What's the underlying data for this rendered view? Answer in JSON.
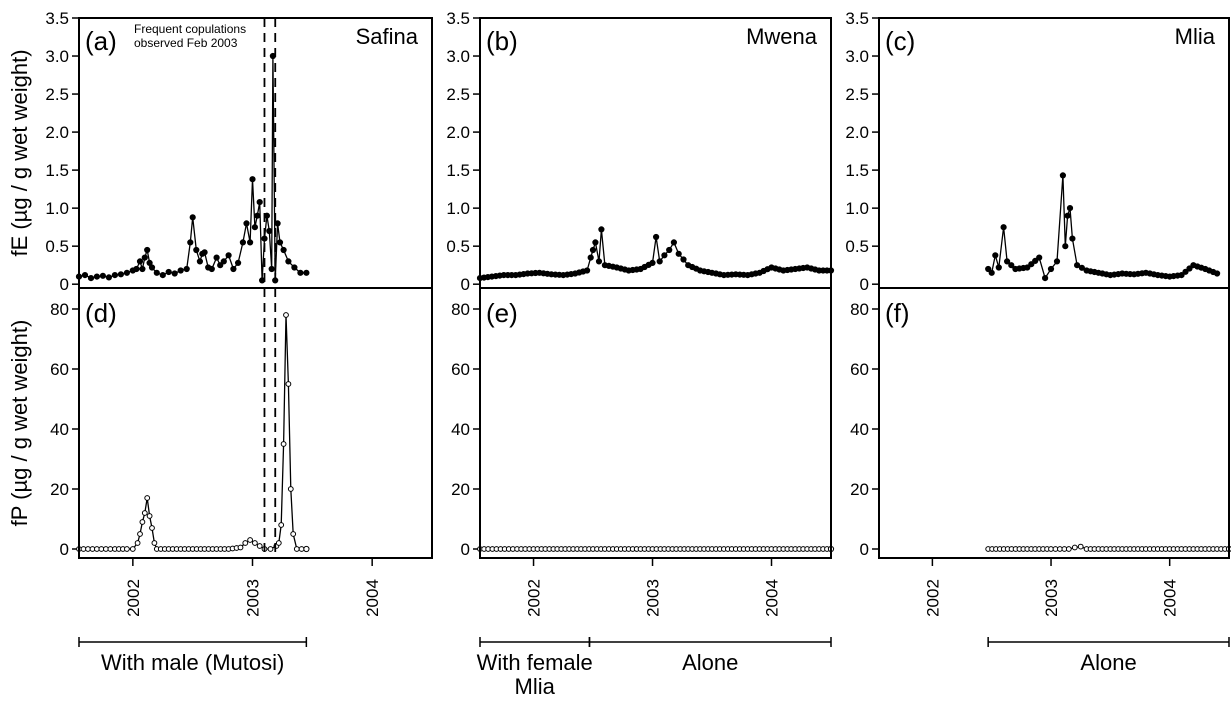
{
  "chart_data": {
    "type": "line",
    "x_axis": {
      "ticks": [
        "2002",
        "2003",
        "2004"
      ],
      "tick_values": [
        2002.0,
        2003.0,
        2004.0
      ],
      "xlim": [
        2001.55,
        2004.5
      ]
    },
    "rows": [
      {
        "id": "fE",
        "ylabel": "fE (µg / g wet weight)",
        "ylim": [
          -0.05,
          3.5
        ],
        "yticks": [
          0,
          0.5,
          1.0,
          1.5,
          2.0,
          2.5,
          3.0,
          3.5
        ],
        "ytick_labels": [
          "0",
          "0.5",
          "1.0",
          "1.5",
          "2.0",
          "2.5",
          "3.0",
          "3.5"
        ],
        "marker": "filled"
      },
      {
        "id": "fP",
        "ylabel": "fP (µg / g wet weight)",
        "ylim": [
          -3,
          87
        ],
        "yticks": [
          0,
          20,
          40,
          60,
          80
        ],
        "ytick_labels": [
          "0",
          "20",
          "40",
          "60",
          "80"
        ],
        "marker": "open"
      }
    ],
    "columns": [
      {
        "name": "Safina",
        "letters": [
          "(a)",
          "(d)"
        ],
        "vlines": [
          2003.1,
          2003.19
        ],
        "annotation": [
          "Frequent copulations",
          "observed Feb 2003"
        ],
        "periods": [
          {
            "range": [
              2001.55,
              2003.45
            ],
            "label": [
              "With male (Mutosi)"
            ]
          }
        ],
        "fE": [
          [
            2001.55,
            0.1
          ],
          [
            2001.6,
            0.12
          ],
          [
            2001.65,
            0.08
          ],
          [
            2001.7,
            0.1
          ],
          [
            2001.75,
            0.11
          ],
          [
            2001.8,
            0.09
          ],
          [
            2001.85,
            0.12
          ],
          [
            2001.9,
            0.13
          ],
          [
            2001.95,
            0.15
          ],
          [
            2002.0,
            0.18
          ],
          [
            2002.03,
            0.2
          ],
          [
            2002.06,
            0.3
          ],
          [
            2002.08,
            0.2
          ],
          [
            2002.1,
            0.35
          ],
          [
            2002.12,
            0.45
          ],
          [
            2002.14,
            0.28
          ],
          [
            2002.16,
            0.22
          ],
          [
            2002.2,
            0.15
          ],
          [
            2002.25,
            0.12
          ],
          [
            2002.3,
            0.16
          ],
          [
            2002.35,
            0.14
          ],
          [
            2002.4,
            0.18
          ],
          [
            2002.45,
            0.2
          ],
          [
            2002.48,
            0.55
          ],
          [
            2002.5,
            0.88
          ],
          [
            2002.53,
            0.45
          ],
          [
            2002.56,
            0.3
          ],
          [
            2002.58,
            0.4
          ],
          [
            2002.6,
            0.42
          ],
          [
            2002.63,
            0.22
          ],
          [
            2002.66,
            0.2
          ],
          [
            2002.7,
            0.35
          ],
          [
            2002.73,
            0.25
          ],
          [
            2002.76,
            0.3
          ],
          [
            2002.8,
            0.38
          ],
          [
            2002.84,
            0.2
          ],
          [
            2002.88,
            0.28
          ],
          [
            2002.92,
            0.55
          ],
          [
            2002.95,
            0.8
          ],
          [
            2002.98,
            0.55
          ],
          [
            2003.0,
            1.38
          ],
          [
            2003.02,
            0.75
          ],
          [
            2003.04,
            0.9
          ],
          [
            2003.06,
            1.08
          ],
          [
            2003.08,
            0.05
          ],
          [
            2003.1,
            0.6
          ],
          [
            2003.12,
            0.9
          ],
          [
            2003.14,
            0.7
          ],
          [
            2003.16,
            0.2
          ],
          [
            2003.17,
            3.0
          ],
          [
            2003.19,
            0.05
          ],
          [
            2003.21,
            0.8
          ],
          [
            2003.23,
            0.55
          ],
          [
            2003.26,
            0.45
          ],
          [
            2003.3,
            0.3
          ],
          [
            2003.35,
            0.22
          ],
          [
            2003.4,
            0.15
          ],
          [
            2003.45,
            0.15
          ]
        ],
        "fP": [
          [
            2001.55,
            0
          ],
          [
            2001.7,
            0
          ],
          [
            2001.85,
            0
          ],
          [
            2001.95,
            0
          ],
          [
            2002.0,
            0
          ],
          [
            2002.04,
            2
          ],
          [
            2002.06,
            5
          ],
          [
            2002.08,
            9
          ],
          [
            2002.1,
            12
          ],
          [
            2002.12,
            17
          ],
          [
            2002.14,
            11
          ],
          [
            2002.16,
            7
          ],
          [
            2002.18,
            2
          ],
          [
            2002.2,
            0
          ],
          [
            2002.4,
            0
          ],
          [
            2002.6,
            0
          ],
          [
            2002.8,
            0
          ],
          [
            2002.9,
            0.5
          ],
          [
            2002.94,
            2
          ],
          [
            2002.98,
            3
          ],
          [
            2003.02,
            2
          ],
          [
            2003.06,
            1
          ],
          [
            2003.1,
            0
          ],
          [
            2003.15,
            0
          ],
          [
            2003.2,
            1
          ],
          [
            2003.22,
            2
          ],
          [
            2003.24,
            8
          ],
          [
            2003.26,
            35
          ],
          [
            2003.28,
            78
          ],
          [
            2003.3,
            55
          ],
          [
            2003.32,
            20
          ],
          [
            2003.34,
            5
          ],
          [
            2003.37,
            0
          ],
          [
            2003.45,
            0
          ]
        ]
      },
      {
        "name": "Mwena",
        "letters": [
          "(b)",
          "(e)"
        ],
        "vlines": [],
        "annotation": [],
        "periods": [
          {
            "range": [
              2001.55,
              2002.47
            ],
            "label": [
              "With female",
              "Mlia"
            ]
          },
          {
            "range": [
              2002.47,
              2004.5
            ],
            "label": [
              "Alone"
            ]
          }
        ],
        "fE": [
          [
            2001.55,
            0.08
          ],
          [
            2001.65,
            0.1
          ],
          [
            2001.75,
            0.12
          ],
          [
            2001.85,
            0.12
          ],
          [
            2001.95,
            0.14
          ],
          [
            2002.05,
            0.15
          ],
          [
            2002.15,
            0.13
          ],
          [
            2002.25,
            0.12
          ],
          [
            2002.35,
            0.14
          ],
          [
            2002.45,
            0.18
          ],
          [
            2002.48,
            0.35
          ],
          [
            2002.5,
            0.45
          ],
          [
            2002.52,
            0.55
          ],
          [
            2002.55,
            0.3
          ],
          [
            2002.57,
            0.72
          ],
          [
            2002.6,
            0.25
          ],
          [
            2002.7,
            0.22
          ],
          [
            2002.8,
            0.18
          ],
          [
            2002.9,
            0.2
          ],
          [
            2003.0,
            0.28
          ],
          [
            2003.03,
            0.62
          ],
          [
            2003.06,
            0.3
          ],
          [
            2003.1,
            0.38
          ],
          [
            2003.14,
            0.45
          ],
          [
            2003.18,
            0.55
          ],
          [
            2003.22,
            0.4
          ],
          [
            2003.3,
            0.25
          ],
          [
            2003.4,
            0.18
          ],
          [
            2003.5,
            0.15
          ],
          [
            2003.6,
            0.12
          ],
          [
            2003.7,
            0.13
          ],
          [
            2003.8,
            0.12
          ],
          [
            2003.9,
            0.15
          ],
          [
            2004.0,
            0.22
          ],
          [
            2004.1,
            0.18
          ],
          [
            2004.2,
            0.2
          ],
          [
            2004.3,
            0.22
          ],
          [
            2004.4,
            0.18
          ],
          [
            2004.5,
            0.18
          ]
        ],
        "fP": [
          [
            2001.55,
            0
          ],
          [
            2002.0,
            0
          ],
          [
            2002.5,
            0
          ],
          [
            2003.0,
            0
          ],
          [
            2003.5,
            0
          ],
          [
            2004.0,
            0
          ],
          [
            2004.5,
            0
          ]
        ]
      },
      {
        "name": "Mlia",
        "letters": [
          "(c)",
          "(f)"
        ],
        "vlines": [],
        "annotation": [],
        "periods": [
          {
            "range": [
              2002.47,
              2004.5
            ],
            "label": [
              "Alone"
            ]
          }
        ],
        "fE": [
          [
            2002.47,
            0.2
          ],
          [
            2002.5,
            0.15
          ],
          [
            2002.53,
            0.38
          ],
          [
            2002.56,
            0.22
          ],
          [
            2002.6,
            0.75
          ],
          [
            2002.63,
            0.3
          ],
          [
            2002.7,
            0.2
          ],
          [
            2002.8,
            0.22
          ],
          [
            2002.9,
            0.35
          ],
          [
            2002.95,
            0.08
          ],
          [
            2003.0,
            0.2
          ],
          [
            2003.05,
            0.3
          ],
          [
            2003.1,
            1.43
          ],
          [
            2003.12,
            0.5
          ],
          [
            2003.14,
            0.9
          ],
          [
            2003.16,
            1.0
          ],
          [
            2003.18,
            0.6
          ],
          [
            2003.22,
            0.25
          ],
          [
            2003.3,
            0.18
          ],
          [
            2003.4,
            0.15
          ],
          [
            2003.5,
            0.12
          ],
          [
            2003.6,
            0.14
          ],
          [
            2003.7,
            0.13
          ],
          [
            2003.8,
            0.15
          ],
          [
            2003.9,
            0.12
          ],
          [
            2004.0,
            0.1
          ],
          [
            2004.1,
            0.12
          ],
          [
            2004.2,
            0.25
          ],
          [
            2004.3,
            0.2
          ],
          [
            2004.4,
            0.14
          ]
        ],
        "fP": [
          [
            2002.47,
            0
          ],
          [
            2002.8,
            0
          ],
          [
            2003.0,
            0
          ],
          [
            2003.15,
            0
          ],
          [
            2003.2,
            0.5
          ],
          [
            2003.25,
            0.8
          ],
          [
            2003.3,
            0
          ],
          [
            2003.6,
            0
          ],
          [
            2004.0,
            0
          ],
          [
            2004.5,
            0
          ]
        ]
      }
    ]
  }
}
